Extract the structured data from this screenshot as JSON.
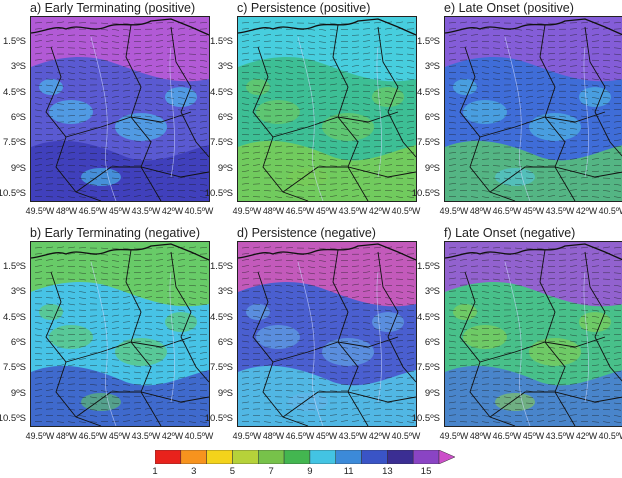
{
  "panels": [
    {
      "id": "a",
      "title": "a) Early Terminating (positive)",
      "fill": "#5a5ad2",
      "coast": "#bb5ad6",
      "south": "#3c3cb8",
      "speckle": "#4ad0f0"
    },
    {
      "id": "c",
      "title": "c) Persistence (positive)",
      "fill": "#3dbf95",
      "coast": "#48cfe6",
      "south": "#7acc55",
      "speckle": "#7acc55"
    },
    {
      "id": "e",
      "title": "e) Late Onset (positive)",
      "fill": "#3f6dd8",
      "coast": "#8c5bd8",
      "south": "#58c275",
      "speckle": "#52c7e8"
    },
    {
      "id": "b",
      "title": "b) Early Terminating (negative)",
      "fill": "#47c3e6",
      "coast": "#6ccc5a",
      "south": "#3e5ac8",
      "speckle": "#66cc58"
    },
    {
      "id": "d",
      "title": "d) Persistence (negative)",
      "fill": "#4a5fd0",
      "coast": "#d05ab8",
      "south": "#52c7e8",
      "speckle": "#67b4ea"
    },
    {
      "id": "f",
      "title": "f) Late Onset (negative)",
      "fill": "#48c08a",
      "coast": "#9a58d6",
      "south": "#4a7ad6",
      "speckle": "#8ed148"
    }
  ],
  "axes": {
    "y_ticks": [
      "1.5ºS",
      "3ºS",
      "4.5ºS",
      "6ºS",
      "7.5ºS",
      "9ºS",
      "10.5ºS"
    ],
    "x_ticks": [
      "49.5ºW",
      "48ºW",
      "46.5ºW",
      "45ºW",
      "43.5ºW",
      "42ºW",
      "40.5ºW"
    ]
  },
  "colorbar": {
    "labels": [
      "1",
      "3",
      "5",
      "7",
      "9",
      "11",
      "13",
      "15"
    ],
    "colors": [
      "#e8221c",
      "#f7931e",
      "#f3d31b",
      "#b6d23a",
      "#77c24a",
      "#43b650",
      "#43c4e3",
      "#3c8ad9",
      "#3a54c6",
      "#3b2e93",
      "#8a44c4"
    ],
    "arrow_color": "#cc4fc9"
  }
}
